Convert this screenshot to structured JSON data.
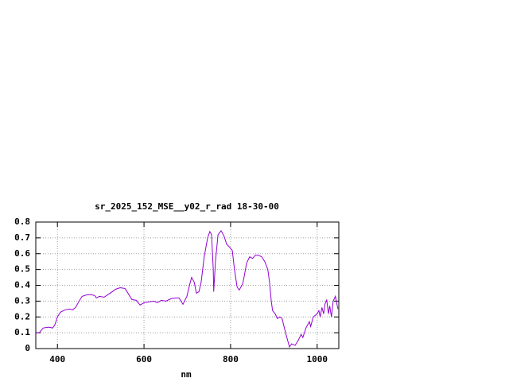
{
  "chart_data": {
    "type": "line",
    "title": "sr_2025_152_MSE__y02_r_rad 18-30-00",
    "xlabel": "nm",
    "x": [
      350,
      358,
      367,
      380,
      389,
      394,
      400,
      407,
      418,
      428,
      435,
      442,
      450,
      457,
      468,
      479,
      486,
      490,
      497,
      508,
      516,
      527,
      534,
      545,
      556,
      563,
      572,
      582,
      591,
      600,
      611,
      622,
      631,
      640,
      651,
      662,
      673,
      681,
      690,
      699,
      706,
      710,
      716,
      721,
      727,
      732,
      739,
      747,
      752,
      756,
      760,
      761,
      765,
      771,
      778,
      785,
      791,
      798,
      804,
      809,
      815,
      820,
      828,
      831,
      837,
      844,
      851,
      857,
      864,
      872,
      879,
      886,
      890,
      894,
      897,
      903,
      908,
      914,
      919,
      927,
      936,
      941,
      949,
      956,
      963,
      967,
      974,
      982,
      985,
      991,
      1000,
      1004,
      1007,
      1011,
      1015,
      1018,
      1022,
      1026,
      1029,
      1033,
      1037,
      1042,
      1048
    ],
    "series": [
      {
        "color": "#9400d3",
        "values": [
          0.1,
          0.1,
          0.13,
          0.135,
          0.13,
          0.15,
          0.2,
          0.23,
          0.245,
          0.25,
          0.245,
          0.26,
          0.3,
          0.33,
          0.34,
          0.34,
          0.335,
          0.32,
          0.33,
          0.325,
          0.34,
          0.36,
          0.375,
          0.385,
          0.38,
          0.35,
          0.31,
          0.305,
          0.275,
          0.29,
          0.295,
          0.3,
          0.29,
          0.305,
          0.3,
          0.315,
          0.32,
          0.32,
          0.28,
          0.33,
          0.41,
          0.45,
          0.42,
          0.35,
          0.36,
          0.42,
          0.58,
          0.7,
          0.74,
          0.72,
          0.5,
          0.36,
          0.55,
          0.72,
          0.745,
          0.71,
          0.66,
          0.64,
          0.62,
          0.5,
          0.39,
          0.37,
          0.41,
          0.45,
          0.54,
          0.58,
          0.57,
          0.59,
          0.59,
          0.58,
          0.55,
          0.5,
          0.42,
          0.3,
          0.24,
          0.22,
          0.19,
          0.2,
          0.19,
          0.1,
          0.01,
          0.03,
          0.02,
          0.05,
          0.09,
          0.07,
          0.13,
          0.17,
          0.14,
          0.2,
          0.22,
          0.24,
          0.2,
          0.26,
          0.22,
          0.28,
          0.31,
          0.22,
          0.27,
          0.2,
          0.3,
          0.33,
          0.25
        ]
      }
    ],
    "xlim": [
      350,
      1050
    ],
    "xticks": [
      400,
      600,
      800,
      1000
    ],
    "ylim": [
      0,
      0.8
    ],
    "yticks": [
      0,
      0.1,
      0.2,
      0.3,
      0.4,
      0.5,
      0.6,
      0.7,
      0.8
    ],
    "grid": true
  }
}
